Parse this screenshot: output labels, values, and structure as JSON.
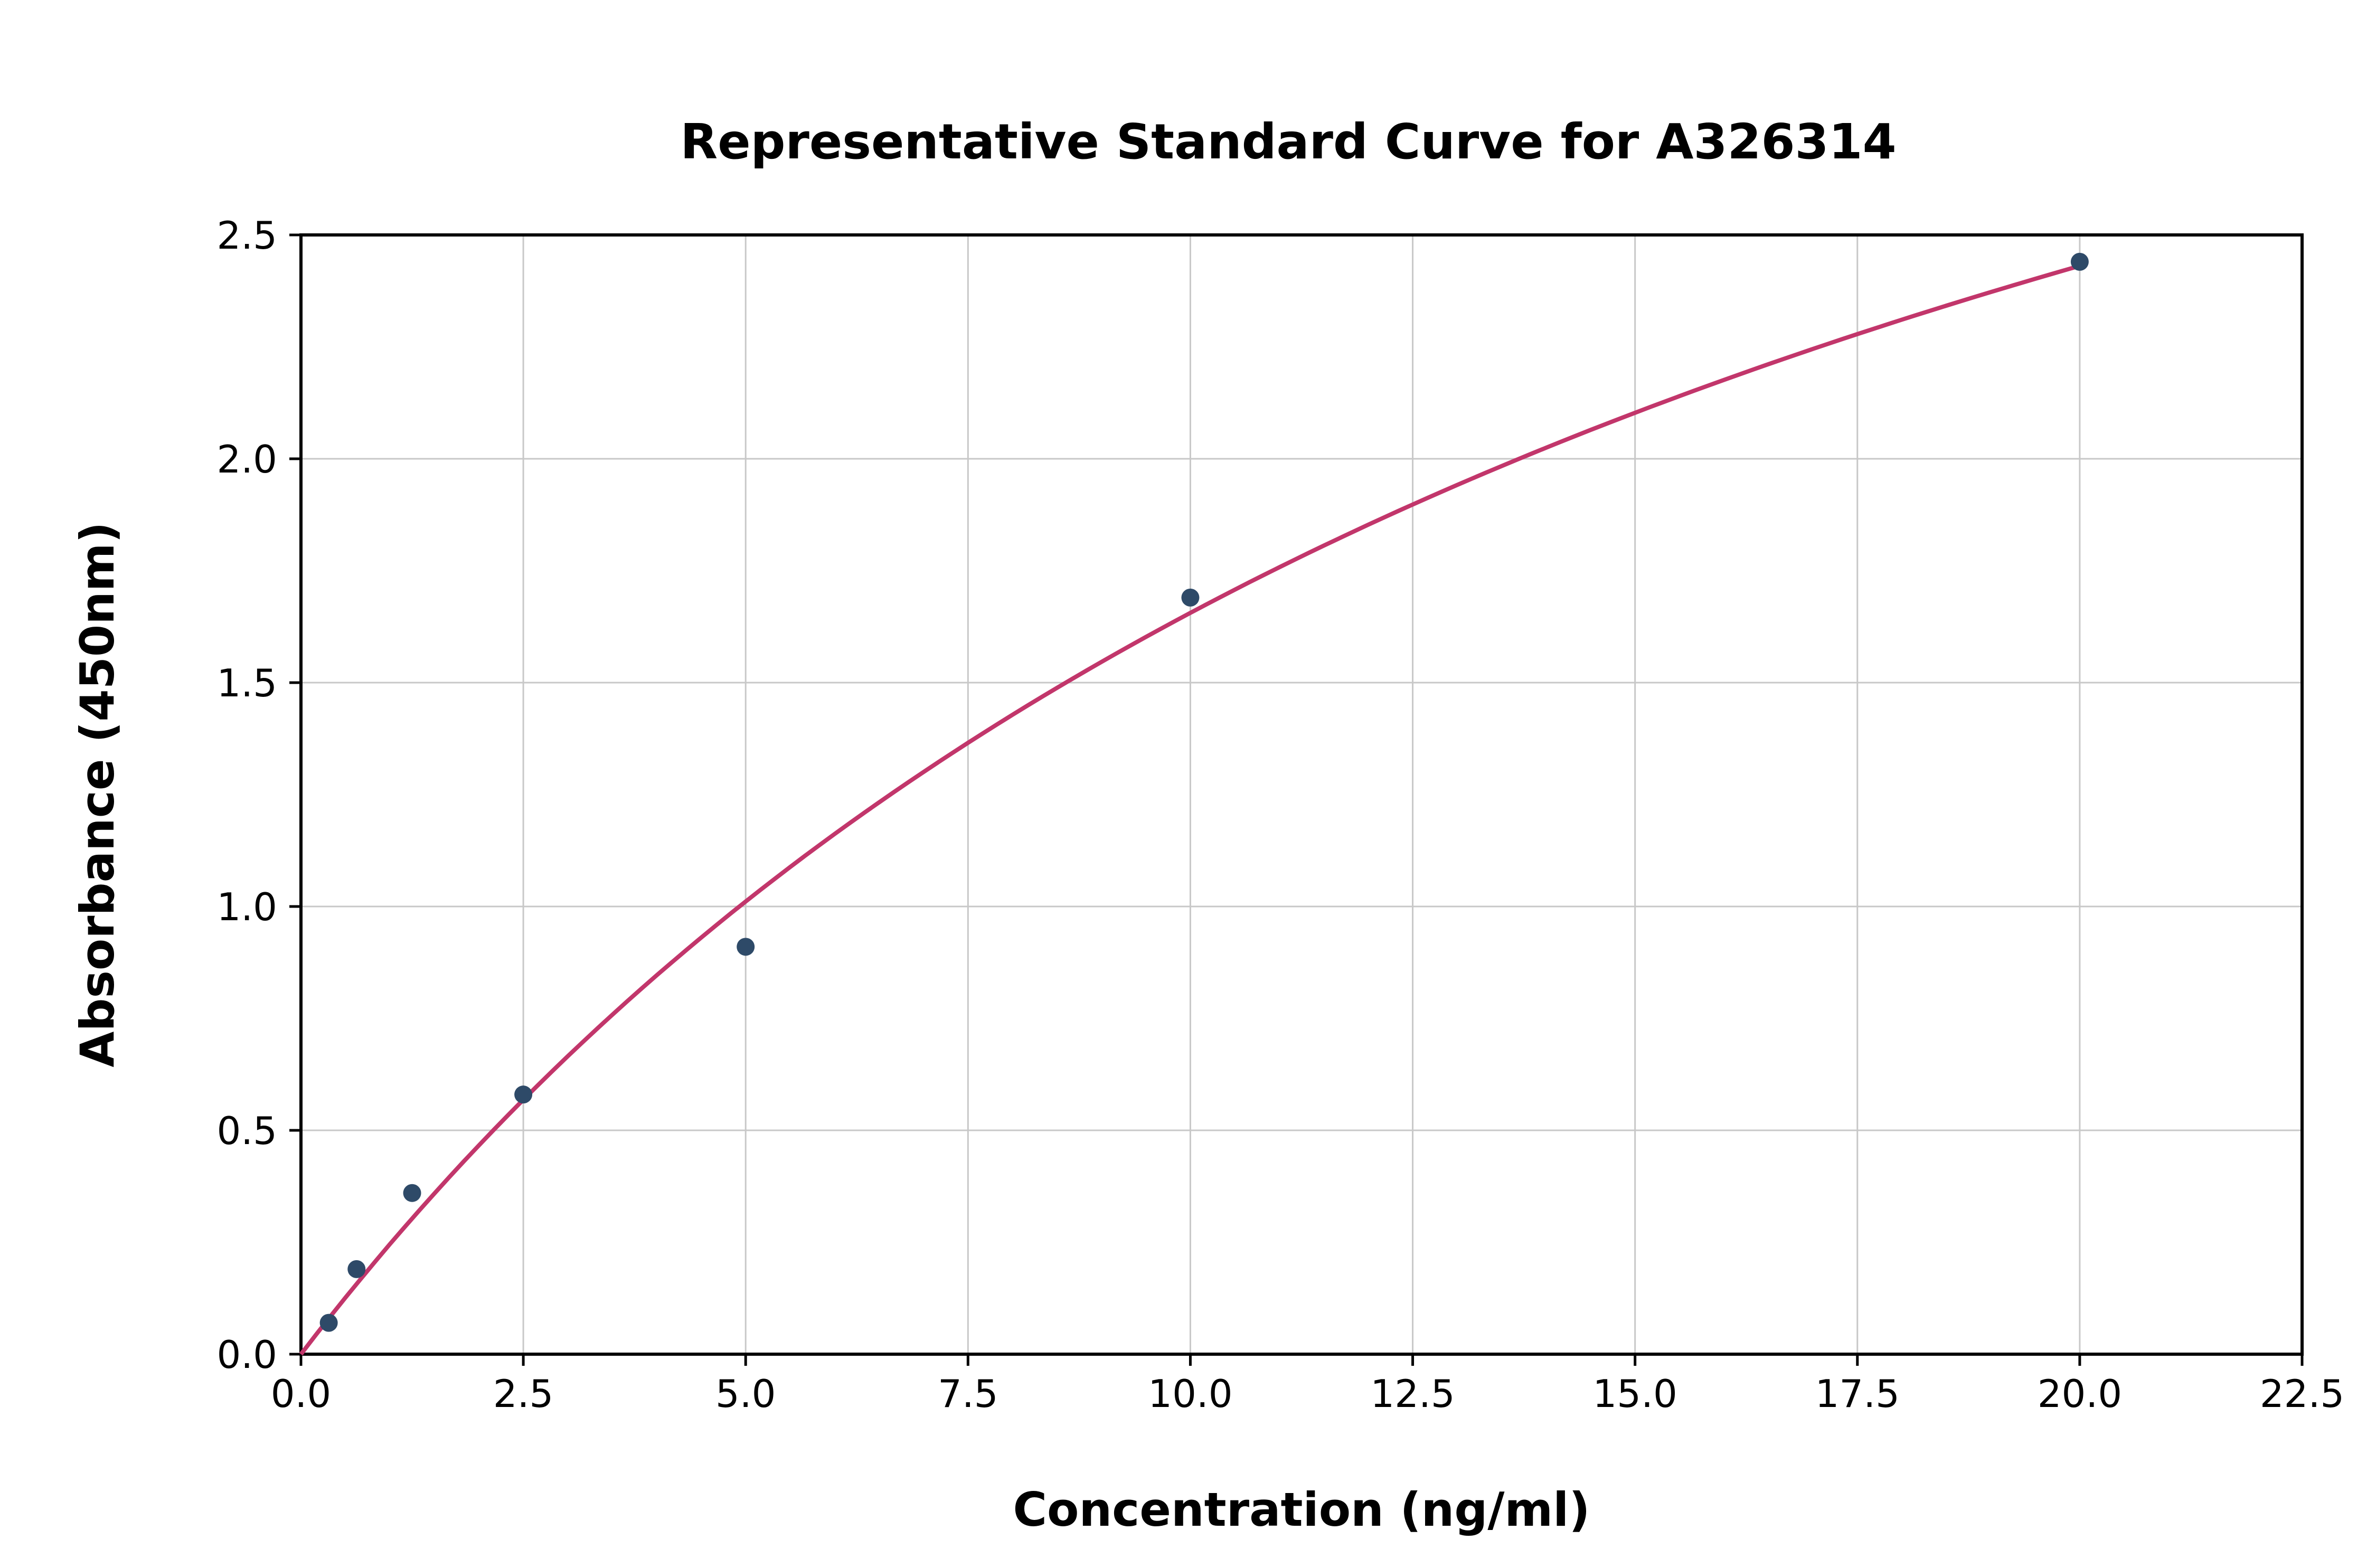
{
  "chart_data": {
    "type": "scatter",
    "title": "Representative Standard Curve for A326314",
    "xlabel": "Concentration (ng/ml)",
    "ylabel": "Absorbance (450nm)",
    "xlim": [
      0,
      22.5
    ],
    "ylim": [
      0,
      2.5
    ],
    "x_ticks": [
      0.0,
      2.5,
      5.0,
      7.5,
      10.0,
      12.5,
      15.0,
      17.5,
      20.0,
      22.5
    ],
    "x_tick_labels": [
      "0.0",
      "2.5",
      "5.0",
      "7.5",
      "10.0",
      "12.5",
      "15.0",
      "17.5",
      "20.0",
      "22.5"
    ],
    "y_ticks": [
      0.0,
      0.5,
      1.0,
      1.5,
      2.0,
      2.5
    ],
    "y_tick_labels": [
      "0.0",
      "0.5",
      "1.0",
      "1.5",
      "2.0",
      "2.5"
    ],
    "grid": true,
    "legend": "none",
    "series": [
      {
        "name": "standard-points",
        "type": "scatter",
        "color": "#2e4a68",
        "x": [
          0.3125,
          0.625,
          1.25,
          2.5,
          5.0,
          10.0,
          20.0
        ],
        "y": [
          0.07,
          0.19,
          0.36,
          0.58,
          0.91,
          1.69,
          2.44
        ]
      },
      {
        "name": "fit-curve",
        "type": "line",
        "color": "#c2366b",
        "fit": {
          "model": "hyperbolic y = a*x/(b+x)",
          "a": 4.57,
          "b": 17.6,
          "x_start": 0.0,
          "x_end": 20.0
        }
      }
    ],
    "colors": {
      "point": "#2e4a68",
      "curve": "#c2366b",
      "grid": "#c8c8c8",
      "axis": "#000000",
      "background": "#ffffff"
    }
  }
}
